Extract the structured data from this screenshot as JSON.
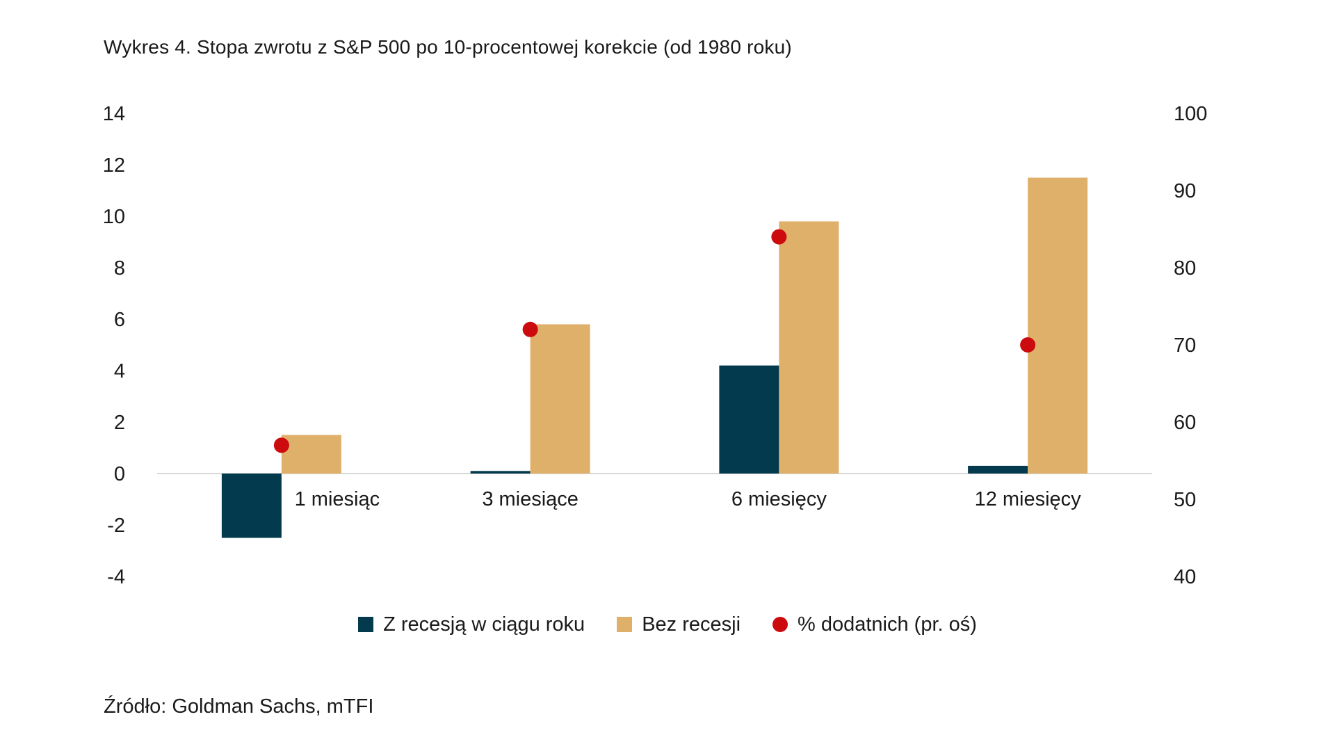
{
  "title": "Wykres 4. Stopa zwrotu z S&P 500 po 10-procentowej korekcie (od 1980 roku)",
  "source": "Źródło: Goldman Sachs, mTFI",
  "colors": {
    "text": "#1a1a1a",
    "axis_line": "#d8d8d8",
    "background": "#ffffff",
    "recession_bar": "#043a4d",
    "no_recession_bar": "#dfb06a",
    "positive_pct_dot": "#cc0b0e"
  },
  "chart_data": {
    "type": "bar",
    "title": "Wykres 4. Stopa zwrotu z S&P 500 po 10-procentowej korekcie (od 1980 roku)",
    "xlabel": "",
    "ylabel": "",
    "categories": [
      "1 miesiąc",
      "3 miesiące",
      "6 miesięcy",
      "12 miesięcy"
    ],
    "series": [
      {
        "name": "Z recesją w ciągu roku",
        "type": "bar",
        "axis": "left",
        "color": "#043a4d",
        "values": [
          -2.5,
          0.1,
          4.2,
          0.3
        ]
      },
      {
        "name": "Bez recesji",
        "type": "bar",
        "axis": "left",
        "color": "#dfb06a",
        "values": [
          1.5,
          5.8,
          9.8,
          11.5
        ]
      },
      {
        "name": "% dodatnich (pr. oś)",
        "type": "scatter",
        "axis": "right",
        "color": "#cc0b0e",
        "values": [
          57,
          72,
          84,
          70
        ]
      }
    ],
    "left_axis": {
      "ticks": [
        14,
        12,
        10,
        8,
        6,
        4,
        2,
        0,
        -2,
        -4
      ],
      "min": -4,
      "max": 14
    },
    "right_axis": {
      "ticks": [
        100,
        90,
        80,
        70,
        60,
        50,
        40
      ],
      "min": 40,
      "max": 100
    },
    "legend_position": "bottom",
    "grid": false
  }
}
